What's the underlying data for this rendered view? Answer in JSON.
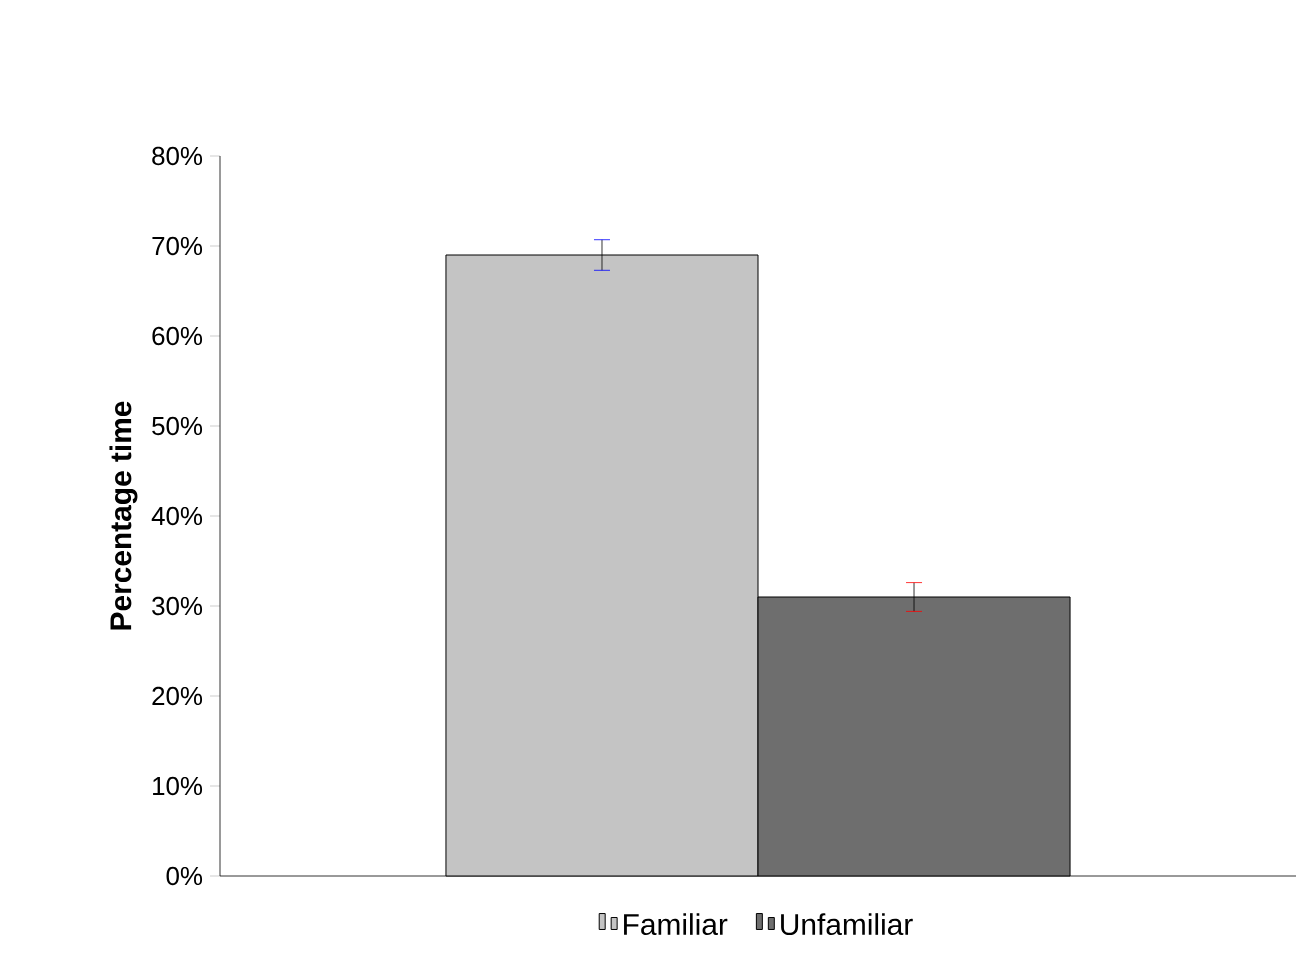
{
  "chart_data": {
    "type": "bar",
    "ylabel": "Percentage time",
    "categories": [
      null
    ],
    "series": [
      {
        "name": "Familiar",
        "color": "#c4c4c4",
        "values": [
          69.0
        ],
        "errors": [
          1.7
        ]
      },
      {
        "name": "Unfamiliar",
        "color": "#6e6e6e",
        "values": [
          31.0
        ],
        "errors": [
          1.6
        ]
      }
    ],
    "ylim": [
      0,
      80
    ],
    "yticks": [
      {
        "value": 0,
        "label": "0%"
      },
      {
        "value": 10,
        "label": "10%"
      },
      {
        "value": 20,
        "label": "20%"
      },
      {
        "value": 30,
        "label": "30%"
      },
      {
        "value": 40,
        "label": "40%"
      },
      {
        "value": 50,
        "label": "50%"
      },
      {
        "value": 60,
        "label": "60%"
      },
      {
        "value": 70,
        "label": "70%"
      },
      {
        "value": 80,
        "label": "80%"
      }
    ],
    "grid": false,
    "legend": "bottom"
  }
}
